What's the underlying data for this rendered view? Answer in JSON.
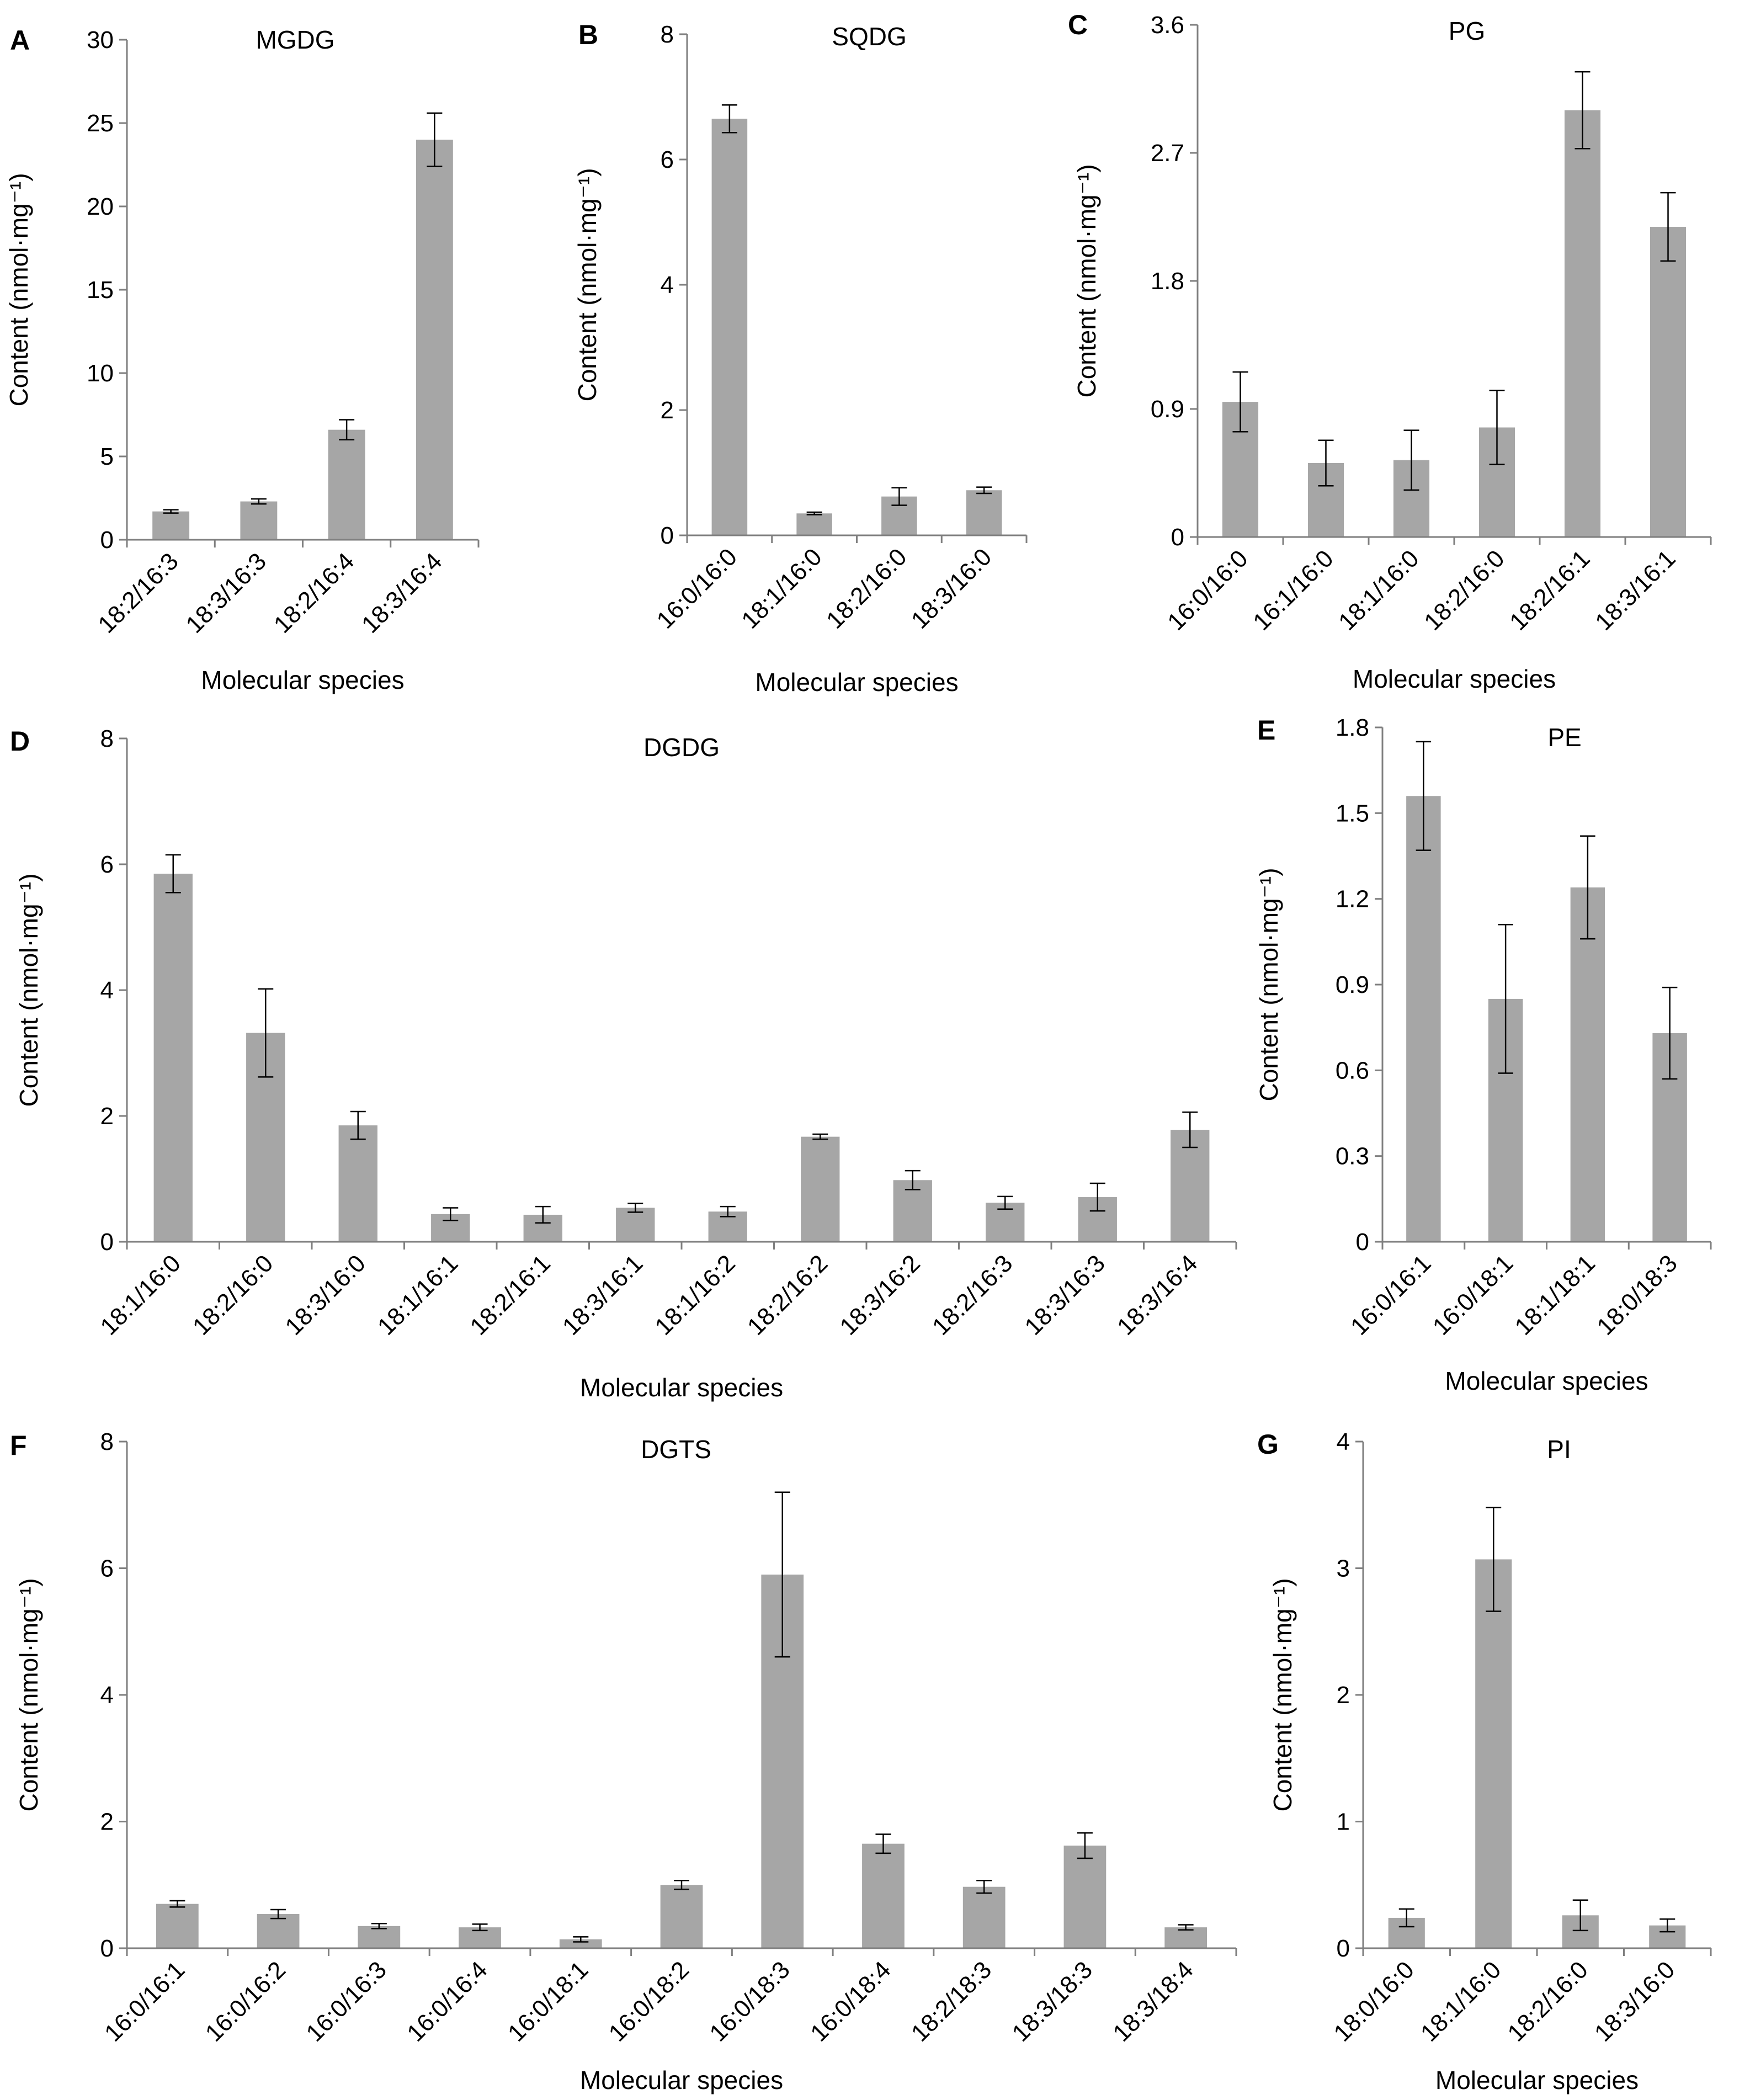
{
  "chart_data": [
    {
      "type": "bar",
      "panel": "A",
      "title": "MGDG",
      "xlabel": "Molecular species",
      "ylabel": "Content (nmol·mg⁻¹)",
      "ylim": [
        0,
        30
      ],
      "yticks": [
        "0",
        "5",
        "10",
        "15",
        "20",
        "25",
        "30"
      ],
      "categories": [
        "18:2/16:3",
        "18:3/16:3",
        "18:2/16:4",
        "18:3/16:4"
      ],
      "values": [
        1.7,
        2.3,
        6.6,
        24.0
      ],
      "errors": [
        0.1,
        0.15,
        0.6,
        1.6
      ],
      "bar_color": "#a6a6a6",
      "grid": false
    },
    {
      "type": "bar",
      "panel": "B",
      "title": "SQDG",
      "xlabel": "Molecular species",
      "ylabel": "Content (nmol·mg⁻¹)",
      "ylim": [
        0,
        8
      ],
      "yticks": [
        "0",
        "2",
        "4",
        "6",
        "8"
      ],
      "categories": [
        "16:0/16:0",
        "18:1/16:0",
        "18:2/16:0",
        "18:3/16:0"
      ],
      "values": [
        6.65,
        0.35,
        0.62,
        0.72
      ],
      "errors": [
        0.22,
        0.02,
        0.14,
        0.05
      ],
      "bar_color": "#a6a6a6",
      "grid": false
    },
    {
      "type": "bar",
      "panel": "C",
      "title": "PG",
      "xlabel": "Molecular species",
      "ylabel": "Content (nmol·mg⁻¹)",
      "ylim": [
        0,
        3.6
      ],
      "yticks": [
        "0",
        "0.9",
        "1.8",
        "2.7",
        "3.6"
      ],
      "categories": [
        "16:0/16:0",
        "16:1/16:0",
        "18:1/16:0",
        "18:2/16:0",
        "18:2/16:1",
        "18:3/16:1"
      ],
      "values": [
        0.95,
        0.52,
        0.54,
        0.77,
        3.0,
        2.18
      ],
      "errors": [
        0.21,
        0.16,
        0.21,
        0.26,
        0.27,
        0.24
      ],
      "bar_color": "#a6a6a6",
      "grid": false
    },
    {
      "type": "bar",
      "panel": "D",
      "title": "DGDG",
      "xlabel": "Molecular species",
      "ylabel": "Content (nmol·mg⁻¹)",
      "ylim": [
        0,
        8
      ],
      "yticks": [
        "0",
        "2",
        "4",
        "6",
        "8"
      ],
      "categories": [
        "18:1/16:0",
        "18:2/16:0",
        "18:3/16:0",
        "18:1/16:1",
        "18:2/16:1",
        "18:3/16:1",
        "18:1/16:2",
        "18:2/16:2",
        "18:3/16:2",
        "18:2/16:3",
        "18:3/16:3",
        "18:3/16:4"
      ],
      "values": [
        5.85,
        3.32,
        1.85,
        0.44,
        0.43,
        0.54,
        0.48,
        1.67,
        0.98,
        0.62,
        0.71,
        1.78
      ],
      "errors": [
        0.3,
        0.7,
        0.22,
        0.1,
        0.13,
        0.07,
        0.08,
        0.04,
        0.15,
        0.1,
        0.22,
        0.28
      ],
      "bar_color": "#a6a6a6",
      "grid": false
    },
    {
      "type": "bar",
      "panel": "E",
      "title": "PE",
      "xlabel": "Molecular species",
      "ylabel": "Content (nmol·mg⁻¹)",
      "ylim": [
        0,
        1.8
      ],
      "yticks": [
        "0",
        "0.3",
        "0.6",
        "0.9",
        "1.2",
        "1.5",
        "1.8"
      ],
      "categories": [
        "16:0/16:1",
        "16:0/18:1",
        "18:1/18:1",
        "18:0/18:3"
      ],
      "values": [
        1.56,
        0.85,
        1.24,
        0.73
      ],
      "errors": [
        0.19,
        0.26,
        0.18,
        0.16
      ],
      "bar_color": "#a6a6a6",
      "grid": false
    },
    {
      "type": "bar",
      "panel": "F",
      "title": "DGTS",
      "xlabel": "Molecular species",
      "ylabel": "Content (nmol·mg⁻¹)",
      "ylim": [
        0,
        8
      ],
      "yticks": [
        "0",
        "2",
        "4",
        "6",
        "8"
      ],
      "categories": [
        "16:0/16:1",
        "16:0/16:2",
        "16:0/16:3",
        "16:0/16:4",
        "16:0/18:1",
        "16:0/18:2",
        "16:0/18:3",
        "16:0/18:4",
        "18:2/18:3",
        "18:3/18:3",
        "18:3/18:4"
      ],
      "values": [
        0.7,
        0.54,
        0.35,
        0.33,
        0.14,
        1.0,
        5.9,
        1.65,
        0.97,
        1.62,
        0.33
      ],
      "errors": [
        0.05,
        0.07,
        0.04,
        0.05,
        0.04,
        0.07,
        1.3,
        0.15,
        0.1,
        0.2,
        0.04
      ],
      "bar_color": "#a6a6a6",
      "grid": false
    },
    {
      "type": "bar",
      "panel": "G",
      "title": "PI",
      "xlabel": "Molecular species",
      "ylabel": "Content (nmol·mg⁻¹)",
      "ylim": [
        0,
        4
      ],
      "yticks": [
        "0",
        "1",
        "2",
        "3",
        "4"
      ],
      "categories": [
        "18:0/16:0",
        "18:1/16:0",
        "18:2/16:0",
        "18:3/16:0"
      ],
      "values": [
        0.24,
        3.07,
        0.26,
        0.18
      ],
      "errors": [
        0.07,
        0.41,
        0.12,
        0.05
      ],
      "bar_color": "#a6a6a6",
      "grid": false
    }
  ]
}
